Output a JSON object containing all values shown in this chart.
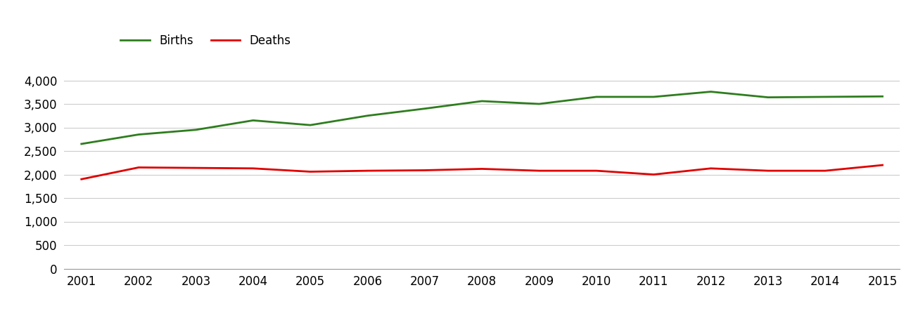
{
  "years": [
    2001,
    2002,
    2003,
    2004,
    2005,
    2006,
    2007,
    2008,
    2009,
    2010,
    2011,
    2012,
    2013,
    2014,
    2015
  ],
  "births": [
    2650,
    2850,
    2950,
    3150,
    3050,
    3250,
    3400,
    3560,
    3500,
    3650,
    3650,
    3760,
    3640,
    3650,
    3660
  ],
  "deaths": [
    1900,
    2150,
    2140,
    2130,
    2060,
    2080,
    2090,
    2120,
    2080,
    2080,
    2000,
    2130,
    2080,
    2080,
    2200
  ],
  "births_color": "#2e7d1e",
  "deaths_color": "#e00000",
  "background_color": "#ffffff",
  "grid_color": "#cccccc",
  "ylim": [
    0,
    4500
  ],
  "yticks": [
    0,
    500,
    1000,
    1500,
    2000,
    2500,
    3000,
    3500,
    4000
  ],
  "legend_births": "Births",
  "legend_deaths": "Deaths",
  "line_width": 2.0,
  "tick_fontsize": 12,
  "legend_fontsize": 12
}
